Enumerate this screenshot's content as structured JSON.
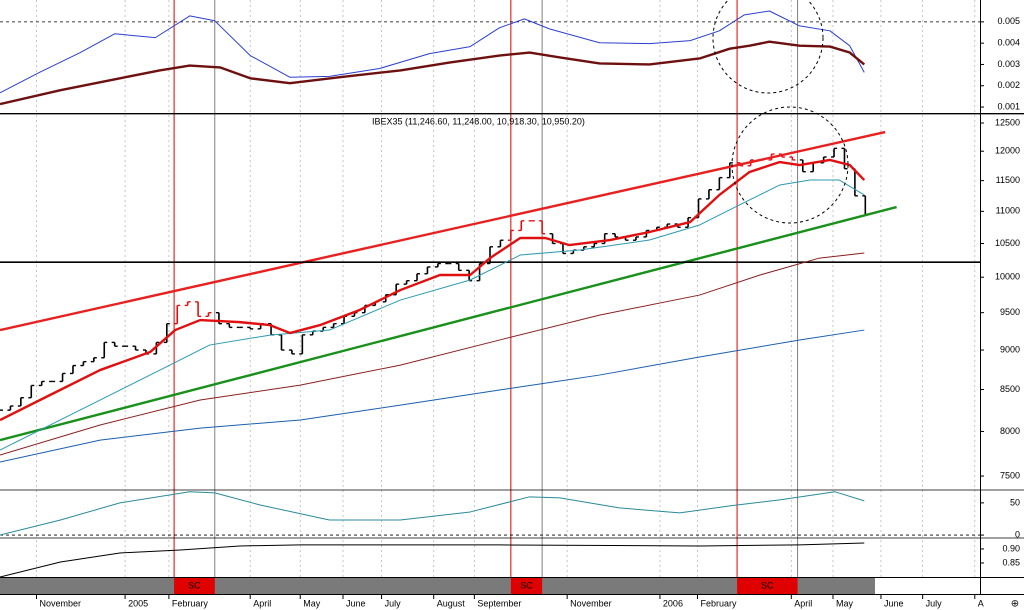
{
  "chart_data": [
    {
      "type": "line",
      "xlim": [
        0,
        94
      ],
      "ylim": [
        0.00072,
        0.00598
      ],
      "yticks": [
        0.005,
        0.004,
        0.003,
        0.002,
        0.001
      ],
      "reference_line": 0.005,
      "series": [
        {
          "color": "#2b3fd0",
          "style": "thin",
          "x": [
            0,
            3.8,
            7.7,
            11,
            14.9,
            18.2,
            20.6,
            24,
            27.8,
            31.6,
            36.4,
            41.2,
            45.1,
            47.9,
            50.3,
            52.7,
            57.5,
            62.3,
            66.2,
            69,
            71.4,
            73.8,
            76.7,
            79.6,
            81.5,
            82.9
          ],
          "values": [
            0.00167,
            0.00263,
            0.00356,
            0.00444,
            0.00426,
            0.00528,
            0.00505,
            0.00342,
            0.0024,
            0.00244,
            0.00281,
            0.00351,
            0.00384,
            0.00472,
            0.00514,
            0.00467,
            0.00402,
            0.00398,
            0.00412,
            0.00458,
            0.00533,
            0.00551,
            0.00481,
            0.00458,
            0.00388,
            0.00263
          ]
        },
        {
          "color": "#6e1010",
          "style": "thick",
          "x": [
            0,
            5.8,
            11.5,
            15.3,
            18.2,
            21.1,
            24,
            27.8,
            32.6,
            38.4,
            43.1,
            47.9,
            50.8,
            53.7,
            57.5,
            62.3,
            67.1,
            70,
            71.9,
            73.8,
            76.7,
            79.6,
            81.5,
            82.9
          ],
          "values": [
            0.00114,
            0.00179,
            0.00235,
            0.00272,
            0.00295,
            0.00286,
            0.00235,
            0.00212,
            0.0024,
            0.00272,
            0.00309,
            0.00342,
            0.00356,
            0.00333,
            0.00305,
            0.003,
            0.00328,
            0.00374,
            0.00388,
            0.00407,
            0.00388,
            0.00384,
            0.00356,
            0.003
          ]
        }
      ]
    },
    {
      "type": "price",
      "title": "IBEX35 (11,246.60, 11,248.00, 10,918.30, 10,950.20)",
      "log_scale": true,
      "xlim": [
        0,
        94
      ],
      "ylim": [
        7350,
        12664
      ],
      "yticks": [
        12500,
        12000,
        11500,
        11000,
        10500,
        10000,
        9500,
        9000,
        8500,
        8000,
        7500
      ],
      "bar_color": "#000000",
      "highlight_bar_color": "#e01010",
      "x": [
        0,
        1,
        2,
        3,
        4,
        5,
        6,
        7,
        8,
        9,
        10,
        11,
        12,
        13,
        14,
        15,
        16,
        17,
        18,
        19,
        20,
        21,
        22,
        23,
        24,
        25,
        26,
        27,
        28,
        29,
        30,
        31,
        32,
        33,
        34,
        35,
        36,
        37,
        38,
        39,
        40,
        41,
        42,
        43,
        44,
        45,
        46,
        47,
        48,
        49,
        50,
        51,
        52,
        53,
        54,
        55,
        56,
        57,
        58,
        59,
        60,
        61,
        62,
        63,
        64,
        65,
        66,
        67,
        68,
        69,
        70,
        71,
        72,
        73,
        74,
        75,
        76,
        77,
        78,
        79,
        80,
        81,
        82,
        83
      ],
      "values": [
        8250,
        8300,
        8400,
        8550,
        8600,
        8600,
        8700,
        8800,
        8850,
        8900,
        9100,
        9050,
        9050,
        9000,
        8950,
        9100,
        9350,
        9600,
        9650,
        9450,
        9500,
        9350,
        9300,
        9300,
        9280,
        9350,
        9200,
        9000,
        8950,
        9200,
        9250,
        9300,
        9350,
        9450,
        9500,
        9600,
        9650,
        9750,
        9900,
        9950,
        10050,
        10150,
        10200,
        10200,
        10100,
        9950,
        10200,
        10450,
        10550,
        10700,
        10850,
        10850,
        10650,
        10500,
        10350,
        10400,
        10450,
        10500,
        10650,
        10600,
        10550,
        10600,
        10700,
        10750,
        10800,
        10750,
        10900,
        11200,
        11350,
        11550,
        11800,
        11750,
        11850,
        11850,
        11950,
        11900,
        11850,
        11650,
        11800,
        11900,
        12050,
        11700,
        11250,
        10950
      ],
      "series": [
        {
          "color": "#e82020",
          "style": "thick",
          "x": [
            0,
            84.9
          ],
          "values": [
            9264,
            12338
          ]
        },
        {
          "color": "#18901a",
          "style": "thick",
          "x": [
            0,
            86
          ],
          "values": [
            7900,
            11069
          ]
        },
        {
          "color": "#000000",
          "style": "medium",
          "x": [
            0,
            94
          ],
          "values": [
            10220,
            10220
          ]
        },
        {
          "color": "#1a5fb0",
          "style": "thin",
          "x": [
            0,
            9.6,
            19.2,
            28.8,
            38.4,
            47.9,
            57.5,
            67.1,
            76.7,
            82.9
          ],
          "values": [
            7654,
            7900,
            8039,
            8133,
            8311,
            8494,
            8680,
            8910,
            9131,
            9264
          ]
        },
        {
          "color": "#8b2020",
          "style": "thin",
          "x": [
            0,
            9.6,
            19.2,
            28.8,
            38.4,
            47.9,
            57.5,
            67.1,
            72.9,
            78.6,
            82.9
          ],
          "values": [
            7731,
            8075,
            8372,
            8555,
            8806,
            9131,
            9467,
            9745,
            10032,
            10281,
            10356
          ]
        },
        {
          "color": "#2a9ab0",
          "style": "thin",
          "x": [
            0,
            9.6,
            16.3,
            20.1,
            25.9,
            31.6,
            38.4,
            45.1,
            49.9,
            55.6,
            62.3,
            67.1,
            70.9,
            74.8,
            77.7,
            80.5,
            82.9
          ],
          "values": [
            7787,
            8372,
            8806,
            9065,
            9197,
            9264,
            9675,
            9960,
            10326,
            10401,
            10553,
            10785,
            11101,
            11428,
            11510,
            11510,
            11264
          ]
        },
        {
          "color": "#e01010",
          "style": "thick",
          "x": [
            0,
            4.8,
            9.6,
            14.4,
            16.8,
            19.2,
            23,
            25.9,
            27.8,
            30.7,
            34.5,
            38.4,
            42.2,
            45.1,
            47,
            49.9,
            52.3,
            54.6,
            58.5,
            62.3,
            66.2,
            69,
            71.9,
            74.8,
            76.7,
            79.6,
            81.5,
            82.9
          ],
          "values": [
            8133,
            8433,
            8743,
            8974,
            9264,
            9399,
            9371,
            9331,
            9224,
            9331,
            9537,
            9816,
            10032,
            10032,
            10281,
            10584,
            10584,
            10477,
            10553,
            10676,
            10831,
            11264,
            11645,
            11814,
            11763,
            11849,
            11763,
            11510
          ]
        }
      ]
    },
    {
      "type": "line",
      "xlim": [
        0,
        94
      ],
      "ylim": [
        -3,
        70
      ],
      "yticks": [
        50,
        0
      ],
      "reference_line": 0,
      "series": [
        {
          "color": "#2a8a9a",
          "style": "thin",
          "x": [
            0,
            5.8,
            11.5,
            18.2,
            20.6,
            24.9,
            31.6,
            38.4,
            45.1,
            50.8,
            53.7,
            59.4,
            65.2,
            70,
            74.8,
            80.1,
            82.9
          ],
          "values": [
            0,
            23.4,
            50,
            67.2,
            65.6,
            46.9,
            23.4,
            23.4,
            35.9,
            59.4,
            57.8,
            42.2,
            34.4,
            45.3,
            54.7,
            67.2,
            53.1
          ]
        }
      ]
    },
    {
      "type": "line",
      "xlim": [
        0,
        94
      ],
      "ylim": [
        0.8,
        0.939
      ],
      "yticks": [
        {
          "value": 0.9,
          "label": "0.90"
        },
        0.85
      ],
      "series": [
        {
          "color": "#000000",
          "style": "thin",
          "x": [
            0,
            5.8,
            11.5,
            17.3,
            23,
            28.8,
            47.9,
            67.1,
            76.7,
            82.9
          ],
          "values": [
            0.8,
            0.8536,
            0.8857,
            0.8964,
            0.9107,
            0.9143,
            0.9143,
            0.9107,
            0.9143,
            0.9214
          ]
        }
      ],
      "highlight_periods": [
        {
          "start": 16.7,
          "end": 20.6,
          "label": "SC"
        },
        {
          "start": 49,
          "end": 52,
          "label": "SC"
        },
        {
          "start": 70.7,
          "end": 76.5,
          "label": "SC"
        }
      ],
      "xticks": [
        {
          "value": 3.5,
          "label": "November"
        },
        {
          "value": 12,
          "label": "2005"
        },
        {
          "value": 16.2,
          "label": "February"
        },
        {
          "value": 24,
          "label": "April"
        },
        {
          "value": 28.8,
          "label": "May"
        },
        {
          "value": 32.9,
          "label": "June"
        },
        {
          "value": 36.6,
          "label": "July"
        },
        {
          "value": 41.6,
          "label": "August"
        },
        {
          "value": 45.5,
          "label": "September"
        },
        {
          "value": 54.4,
          "label": "November"
        },
        {
          "value": 63.3,
          "label": "2006"
        },
        {
          "value": 66.9,
          "label": "February"
        },
        {
          "value": 75.9,
          "label": "April"
        },
        {
          "value": 79.9,
          "label": "May"
        },
        {
          "value": 84.5,
          "label": "June"
        },
        {
          "value": 88.5,
          "label": "July"
        },
        {
          "value": 93.5,
          "label": "A"
        }
      ]
    }
  ]
}
